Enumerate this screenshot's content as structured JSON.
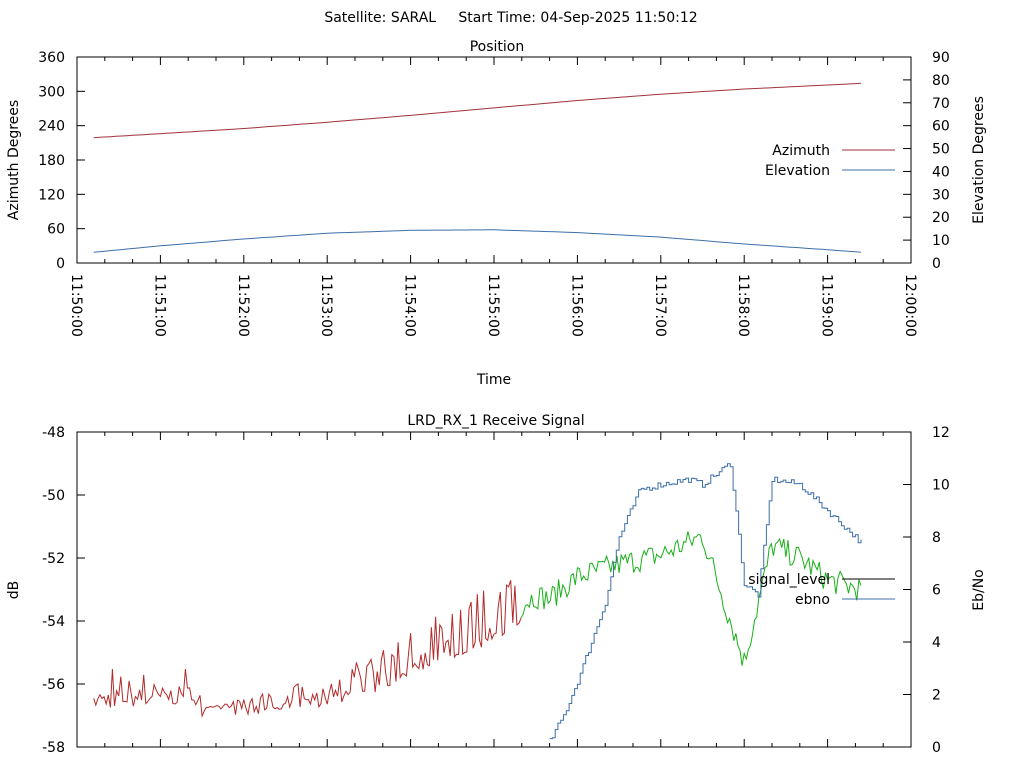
{
  "header": {
    "title": "Satellite: SARAL     Start Time: 04-Sep-2025 11:50:12"
  },
  "chart_data": [
    {
      "type": "line",
      "title": "Position",
      "xlabel": "Time",
      "ylabel": "Azimuth Degrees",
      "y2label": "Elevation Degrees",
      "xlim": [
        "11:50:00",
        "12:00:00"
      ],
      "ylim": [
        0,
        360
      ],
      "y2lim": [
        0,
        90
      ],
      "x_ticks": [
        "11:50:00",
        "11:51:00",
        "11:52:00",
        "11:53:00",
        "11:54:00",
        "11:55:00",
        "11:56:00",
        "11:57:00",
        "11:58:00",
        "11:59:00",
        "12:00:00"
      ],
      "y_ticks": [
        "0",
        "60",
        "120",
        "180",
        "240",
        "300",
        "360"
      ],
      "y2_ticks": [
        "0",
        "10",
        "20",
        "30",
        "40",
        "50",
        "60",
        "70",
        "80",
        "90"
      ],
      "legend_position": "right",
      "grid": false,
      "x": [
        "11:50:12",
        "11:51:00",
        "11:52:00",
        "11:53:00",
        "11:54:00",
        "11:55:00",
        "11:56:00",
        "11:57:00",
        "11:58:00",
        "11:59:00",
        "11:59:24"
      ],
      "series": [
        {
          "name": "Azimuth",
          "axis": "left",
          "color": "#a0323c",
          "values": [
            219,
            226,
            235,
            246,
            258,
            271,
            284,
            295,
            304,
            311,
            314
          ]
        },
        {
          "name": "Elevation",
          "axis": "right",
          "color": "#3e6fa8",
          "values": [
            4.7,
            7.5,
            10.5,
            13.0,
            14.3,
            14.5,
            13.3,
            11.3,
            8.3,
            5.8,
            4.7
          ]
        }
      ]
    },
    {
      "type": "line",
      "title": "LRD_RX_1 Receive Signal",
      "xlabel": "",
      "ylabel": "dB",
      "y2label": "Eb/No",
      "xlim": [
        "11:50:00",
        "12:00:00"
      ],
      "ylim": [
        -58,
        -48
      ],
      "y2lim": [
        0,
        12
      ],
      "y_ticks": [
        "-48",
        "-50",
        "-52",
        "-54",
        "-56",
        "-58"
      ],
      "y2_ticks": [
        "0",
        "2",
        "4",
        "6",
        "8",
        "10",
        "12"
      ],
      "legend_position": "right",
      "grid": false,
      "series": [
        {
          "name": "signal_level",
          "axis": "left",
          "color_low": "#b22a2a",
          "color_high": "#18b018",
          "color_legend": "#000000",
          "x": [
            "11:50:12",
            "11:51:00",
            "11:52:00",
            "11:53:00",
            "11:53:40",
            "11:54:00",
            "11:54:30",
            "11:55:00",
            "11:55:30",
            "11:55:40",
            "11:56:00",
            "11:56:30",
            "11:57:00",
            "11:57:30",
            "11:58:00",
            "11:58:20",
            "11:58:40",
            "11:59:00",
            "11:59:24"
          ],
          "values": [
            -56.5,
            -56.4,
            -56.3,
            -56.0,
            -55.5,
            -55.0,
            -54.5,
            -54.0,
            -53.2,
            -53.3,
            -52.6,
            -52.2,
            -51.9,
            -51.3,
            -55.3,
            -51.6,
            -52.0,
            -52.7,
            -53.0
          ]
        },
        {
          "name": "ebno",
          "axis": "right",
          "color": "#3e6fa8",
          "x": [
            "11:55:40",
            "11:55:50",
            "11:56:00",
            "11:56:20",
            "11:56:30",
            "11:56:45",
            "11:57:00",
            "11:57:20",
            "11:57:30",
            "11:57:50",
            "11:58:00",
            "11:58:10",
            "11:58:20",
            "11:58:40",
            "11:58:50",
            "11:59:10",
            "11:59:24"
          ],
          "values": [
            0.2,
            1.2,
            2.5,
            5.5,
            8.0,
            9.8,
            10.0,
            10.2,
            10.0,
            10.8,
            6.2,
            5.8,
            10.2,
            10.0,
            9.5,
            8.5,
            7.8
          ]
        }
      ]
    }
  ]
}
